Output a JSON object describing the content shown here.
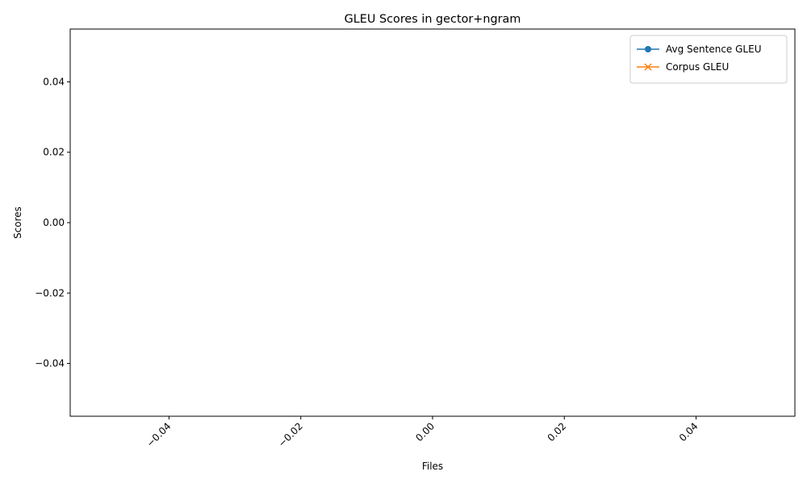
{
  "chart_data": {
    "type": "line",
    "title": "GLEU Scores in gector+ngram",
    "xlabel": "Files",
    "ylabel": "Scores",
    "xlim": [
      -0.055,
      0.055
    ],
    "ylim": [
      -0.055,
      0.055
    ],
    "x_ticks": [
      -0.04,
      -0.02,
      0.0,
      0.02,
      0.04
    ],
    "x_tick_labels": [
      "−0.04",
      "−0.02",
      "0.00",
      "0.02",
      "0.04"
    ],
    "x_tick_rotation": 45,
    "y_ticks": [
      -0.04,
      -0.02,
      0.0,
      0.02,
      0.04
    ],
    "y_tick_labels": [
      "−0.04",
      "−0.02",
      "0.00",
      "0.02",
      "0.04"
    ],
    "categories": [],
    "series": [
      {
        "name": "Avg Sentence GLEU",
        "values": [],
        "color": "#1f77b4",
        "marker": "circle"
      },
      {
        "name": "Corpus GLEU",
        "values": [],
        "color": "#ff7f0e",
        "marker": "x"
      }
    ],
    "legend_position": "top-right",
    "grid": false
  }
}
